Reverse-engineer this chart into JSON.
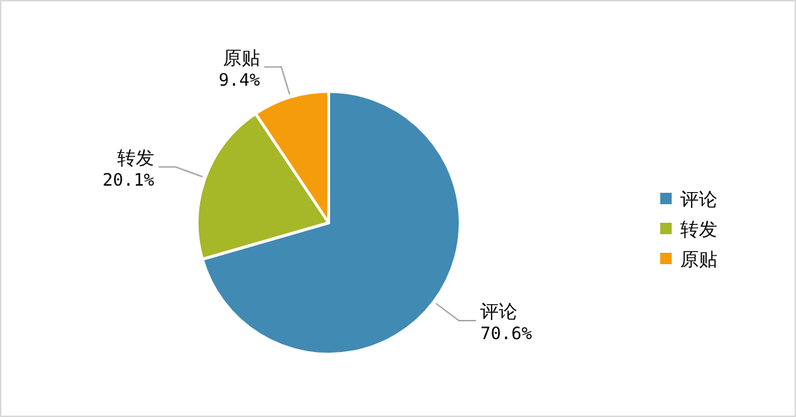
{
  "chart_data": {
    "type": "pie",
    "categories": [
      "评论",
      "转发",
      "原贴"
    ],
    "values": [
      70.6,
      20.1,
      9.4
    ],
    "colors": [
      "#418ab3",
      "#a6b727",
      "#f59c0b"
    ],
    "value_labels": [
      "70.6%",
      "20.1%",
      "9.4%"
    ],
    "legend": "right"
  }
}
